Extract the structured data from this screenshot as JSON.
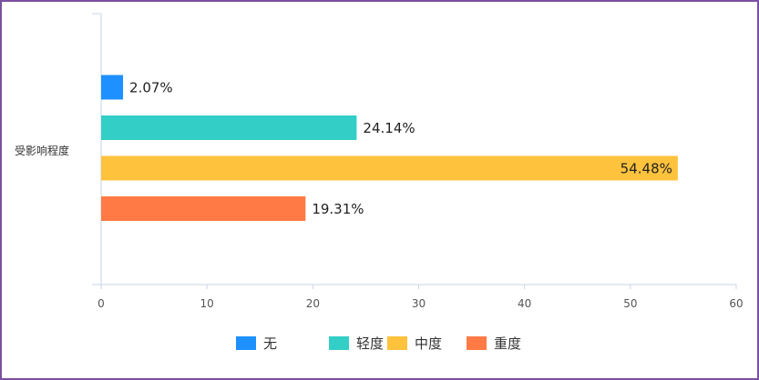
{
  "chart_data": {
    "type": "bar",
    "orientation": "horizontal",
    "category_label": "受影响程度",
    "x_ticks": [
      "0",
      "10",
      "20",
      "30",
      "40",
      "50",
      "60"
    ],
    "xlim": [
      0,
      60
    ],
    "grid": false,
    "legend_position": "bottom",
    "series": [
      {
        "name": "无",
        "value": 2.07,
        "label": "2.07%",
        "color": "#1e90ff"
      },
      {
        "name": "轻度",
        "value": 24.14,
        "label": "24.14%",
        "color": "#33cfc7"
      },
      {
        "name": "中度",
        "value": 54.48,
        "label": "54.48%",
        "color": "#ffc23d"
      },
      {
        "name": "重度",
        "value": 19.31,
        "label": "19.31%",
        "color": "#ff7a45"
      }
    ]
  }
}
